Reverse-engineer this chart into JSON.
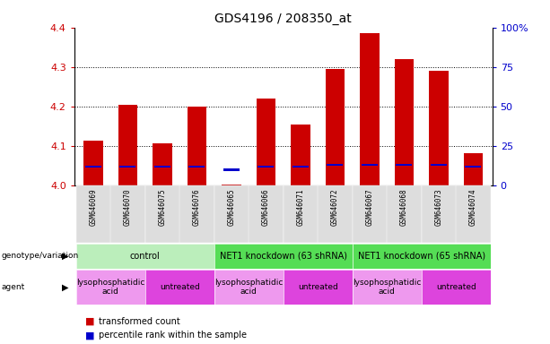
{
  "title": "GDS4196 / 208350_at",
  "samples": [
    "GSM646069",
    "GSM646070",
    "GSM646075",
    "GSM646076",
    "GSM646065",
    "GSM646066",
    "GSM646071",
    "GSM646072",
    "GSM646067",
    "GSM646068",
    "GSM646073",
    "GSM646074"
  ],
  "red_values": [
    4.115,
    4.205,
    4.108,
    4.2,
    4.002,
    4.22,
    4.155,
    4.295,
    4.385,
    4.32,
    4.29,
    4.083
  ],
  "blue_values": [
    4.045,
    4.045,
    4.045,
    4.045,
    4.038,
    4.045,
    4.045,
    4.05,
    4.05,
    4.05,
    4.05,
    4.045
  ],
  "ylim": [
    4.0,
    4.4
  ],
  "yticks_left": [
    4.0,
    4.1,
    4.2,
    4.3,
    4.4
  ],
  "yticks_right": [
    0,
    25,
    50,
    75,
    100
  ],
  "yticks_right_labels": [
    "0",
    "25",
    "50",
    "75",
    "100%"
  ],
  "bar_width": 0.55,
  "red_color": "#cc0000",
  "blue_color": "#0000cc",
  "bar_bottom": 4.0,
  "genotype_groups": [
    {
      "label": "control",
      "start": 0,
      "end": 3,
      "color": "#bbeebb"
    },
    {
      "label": "NET1 knockdown (63 shRNA)",
      "start": 4,
      "end": 7,
      "color": "#55dd55"
    },
    {
      "label": "NET1 knockdown (65 shRNA)",
      "start": 8,
      "end": 11,
      "color": "#55dd55"
    }
  ],
  "agent_groups": [
    {
      "label": "lysophosphatidic\nacid",
      "start": 0,
      "end": 1,
      "color": "#ee99ee"
    },
    {
      "label": "untreated",
      "start": 2,
      "end": 3,
      "color": "#dd44dd"
    },
    {
      "label": "lysophosphatidic\nacid",
      "start": 4,
      "end": 5,
      "color": "#ee99ee"
    },
    {
      "label": "untreated",
      "start": 6,
      "end": 7,
      "color": "#dd44dd"
    },
    {
      "label": "lysophosphatidic\nacid",
      "start": 8,
      "end": 9,
      "color": "#ee99ee"
    },
    {
      "label": "untreated",
      "start": 10,
      "end": 11,
      "color": "#dd44dd"
    }
  ],
  "tick_color_left": "#cc0000",
  "tick_color_right": "#0000cc",
  "title_fontsize": 10,
  "sample_fontsize": 6.5,
  "label_fontsize": 8,
  "xticklabel_bg": "#dddddd"
}
